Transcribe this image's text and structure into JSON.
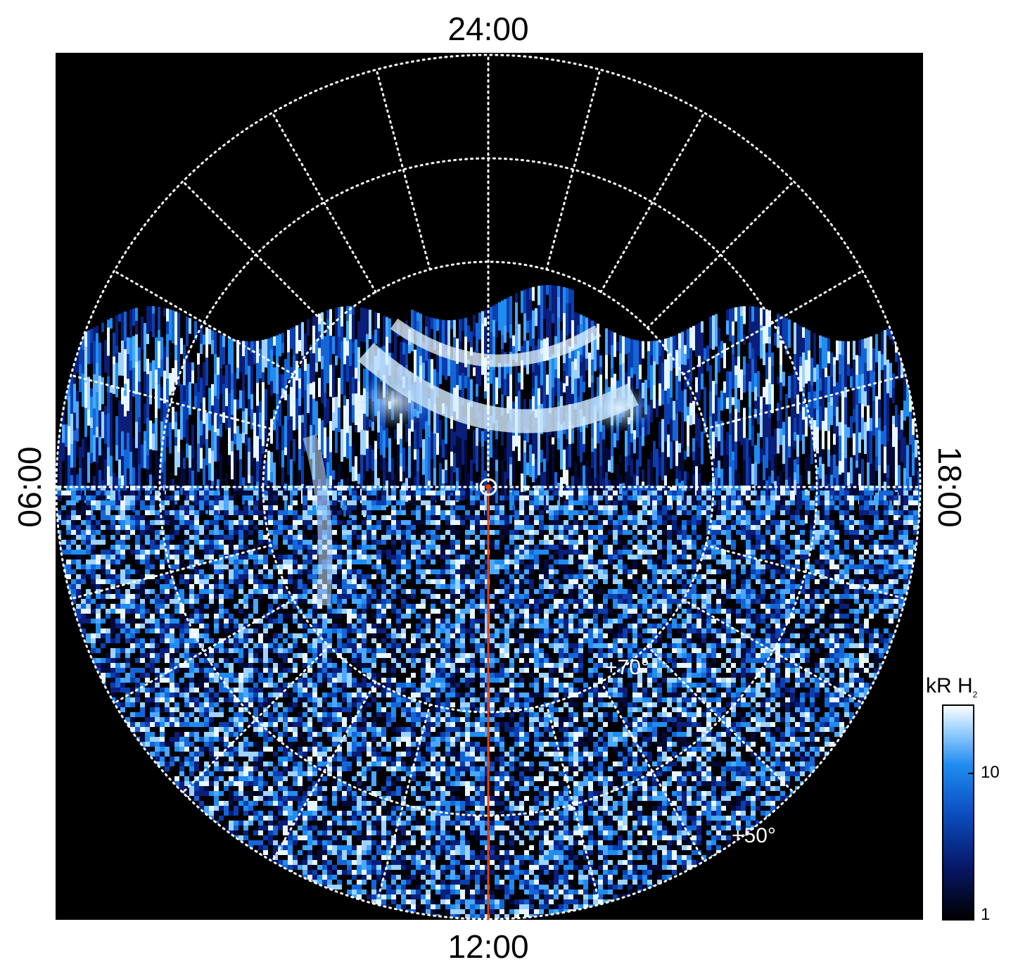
{
  "labels": {
    "top": "24:00",
    "bottom": "12:00",
    "left": "06:00",
    "right": "18:00"
  },
  "latitude_labels": {
    "lat70": "+70°",
    "lat50": "+50°"
  },
  "colorbar": {
    "title_main": "kR H",
    "title_sub": "2",
    "ticks": [
      "10",
      "1"
    ]
  },
  "colors": {
    "background": "#000000",
    "grid": "#ffffff",
    "meridian": "#e04010",
    "emission_dark": "#0a1a5a",
    "emission_mid": "#1e7fe6",
    "emission_bright": "#dff0ff"
  }
}
